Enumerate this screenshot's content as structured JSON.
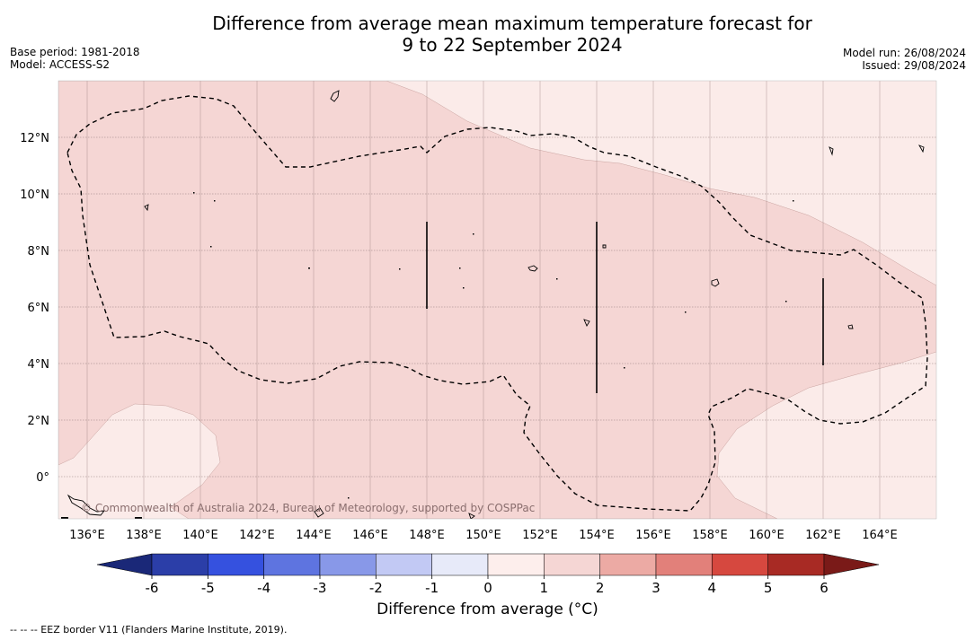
{
  "title": {
    "line1": "Difference from average mean maximum temperature forecast for",
    "line2": "9 to 22 September 2024"
  },
  "meta_left": {
    "base_period": "Base period: 1981-2018",
    "model": "Model: ACCESS-S2"
  },
  "meta_right": {
    "model_run": "Model run: 26/08/2024",
    "issued": "Issued: 29/08/2024"
  },
  "map": {
    "lat_labels": [
      "12°N",
      "10°N",
      "8°N",
      "6°N",
      "4°N",
      "2°N",
      "0°"
    ],
    "lon_labels": [
      "136°E",
      "138°E",
      "140°E",
      "142°E",
      "144°E",
      "146°E",
      "148°E",
      "150°E",
      "152°E",
      "154°E",
      "156°E",
      "158°E",
      "160°E",
      "162°E",
      "164°E"
    ],
    "attribution": "© Commonwealth of Australia 2024, Bureau of Meteorology, supported by COSPPac",
    "fill_colors": {
      "band_1_2": "#f5d6d4",
      "band_0_1": "#fbebe9"
    }
  },
  "legend": {
    "title": "Difference from average (°C)",
    "ticks": [
      "-6",
      "-5",
      "-4",
      "-3",
      "-2",
      "-1",
      "0",
      "1",
      "2",
      "3",
      "4",
      "5",
      "6"
    ],
    "colors": [
      "#2b3ea8",
      "#3551df",
      "#5e74e0",
      "#8898e8",
      "#c2c9f4",
      "#e7eaf9",
      "#fdeeec",
      "#f5d6d4",
      "#ecaaa4",
      "#e2807a",
      "#d6483f",
      "#a82a24"
    ],
    "under_color": "#1a2878",
    "over_color": "#7a1a18"
  },
  "footer": "--  --  -- EEZ border V11 (Flanders Marine Institute, 2019)."
}
